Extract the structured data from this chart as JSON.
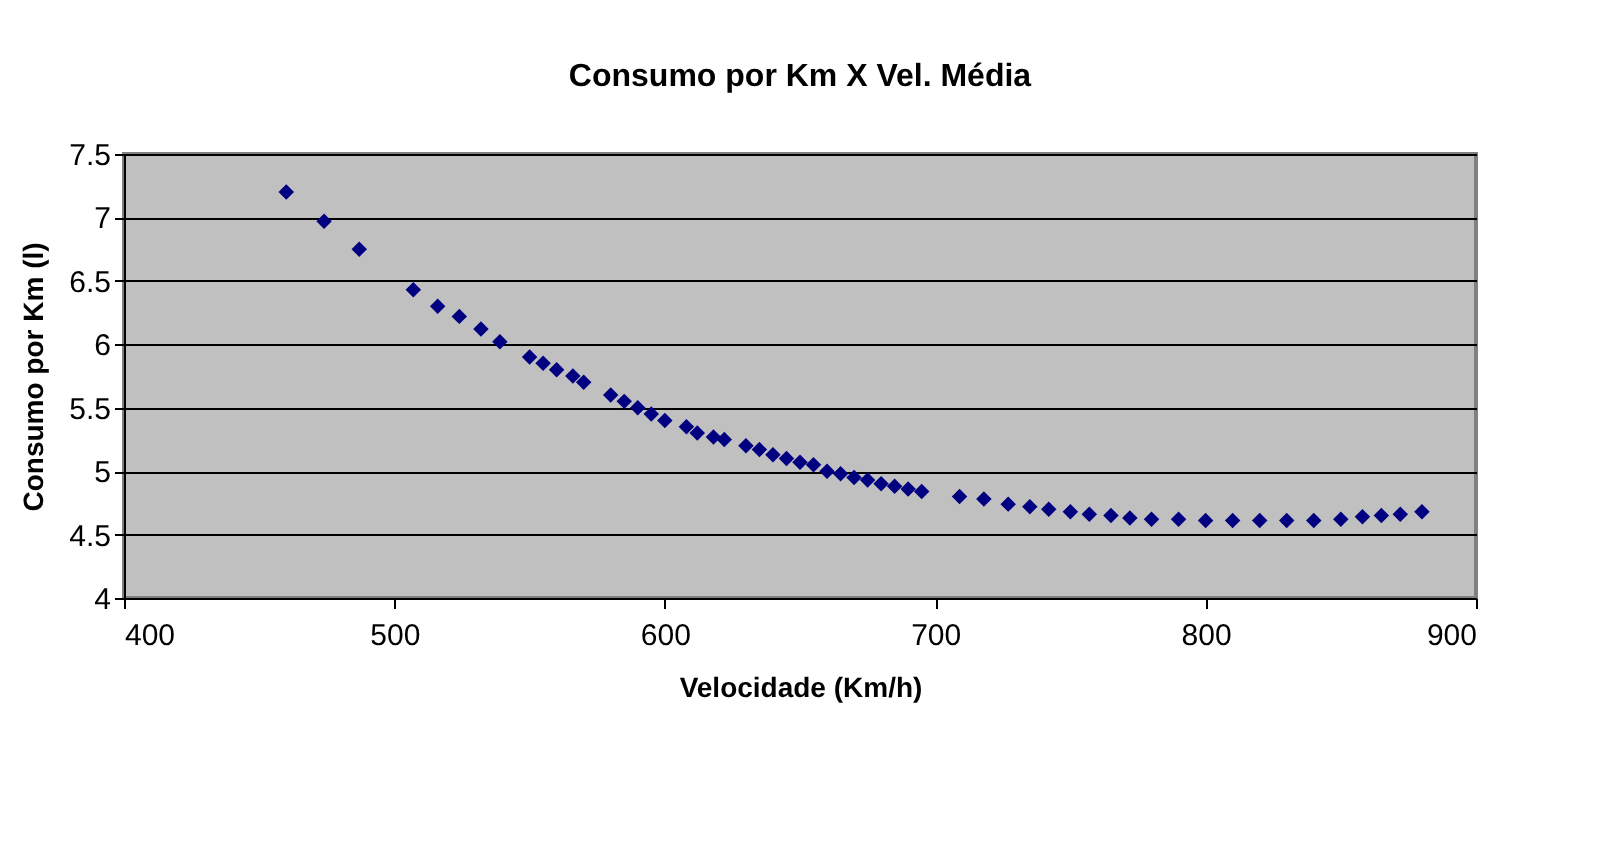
{
  "chart_data": {
    "type": "scatter",
    "title": "Consumo por Km X Vel. Média",
    "xlabel": "Velocidade (Km/h)",
    "ylabel": "Consumo por Km (l)",
    "xlim": [
      400,
      900
    ],
    "xticks": [
      400,
      500,
      600,
      700,
      800,
      900
    ],
    "ylim": [
      4,
      7.5
    ],
    "yticks": [
      4,
      4.5,
      5,
      5.5,
      6,
      6.5,
      7,
      7.5
    ],
    "grid": "y",
    "marker": "diamond",
    "series": [
      {
        "color": "#000080",
        "x": [
          460,
          474,
          487,
          507,
          516,
          524,
          532,
          539,
          550,
          555,
          560,
          566,
          570,
          580,
          585,
          590,
          595,
          600,
          608,
          612,
          618,
          622,
          630,
          635,
          640,
          645,
          650,
          655,
          660,
          665,
          670,
          675,
          680,
          685,
          690,
          695,
          709,
          718,
          727,
          735,
          742,
          750,
          757,
          765,
          772,
          780,
          790,
          800,
          810,
          820,
          830,
          840,
          850,
          858,
          865,
          872,
          880
        ],
        "values": [
          7.2,
          6.97,
          6.75,
          6.43,
          6.3,
          6.22,
          6.12,
          6.02,
          5.9,
          5.85,
          5.8,
          5.75,
          5.7,
          5.6,
          5.55,
          5.5,
          5.45,
          5.4,
          5.35,
          5.3,
          5.27,
          5.25,
          5.2,
          5.17,
          5.13,
          5.1,
          5.07,
          5.05,
          5.0,
          4.98,
          4.95,
          4.93,
          4.9,
          4.88,
          4.86,
          4.84,
          4.8,
          4.78,
          4.74,
          4.72,
          4.7,
          4.68,
          4.66,
          4.65,
          4.63,
          4.62,
          4.62,
          4.61,
          4.61,
          4.61,
          4.61,
          4.61,
          4.62,
          4.64,
          4.65,
          4.66,
          4.68
        ]
      }
    ]
  }
}
